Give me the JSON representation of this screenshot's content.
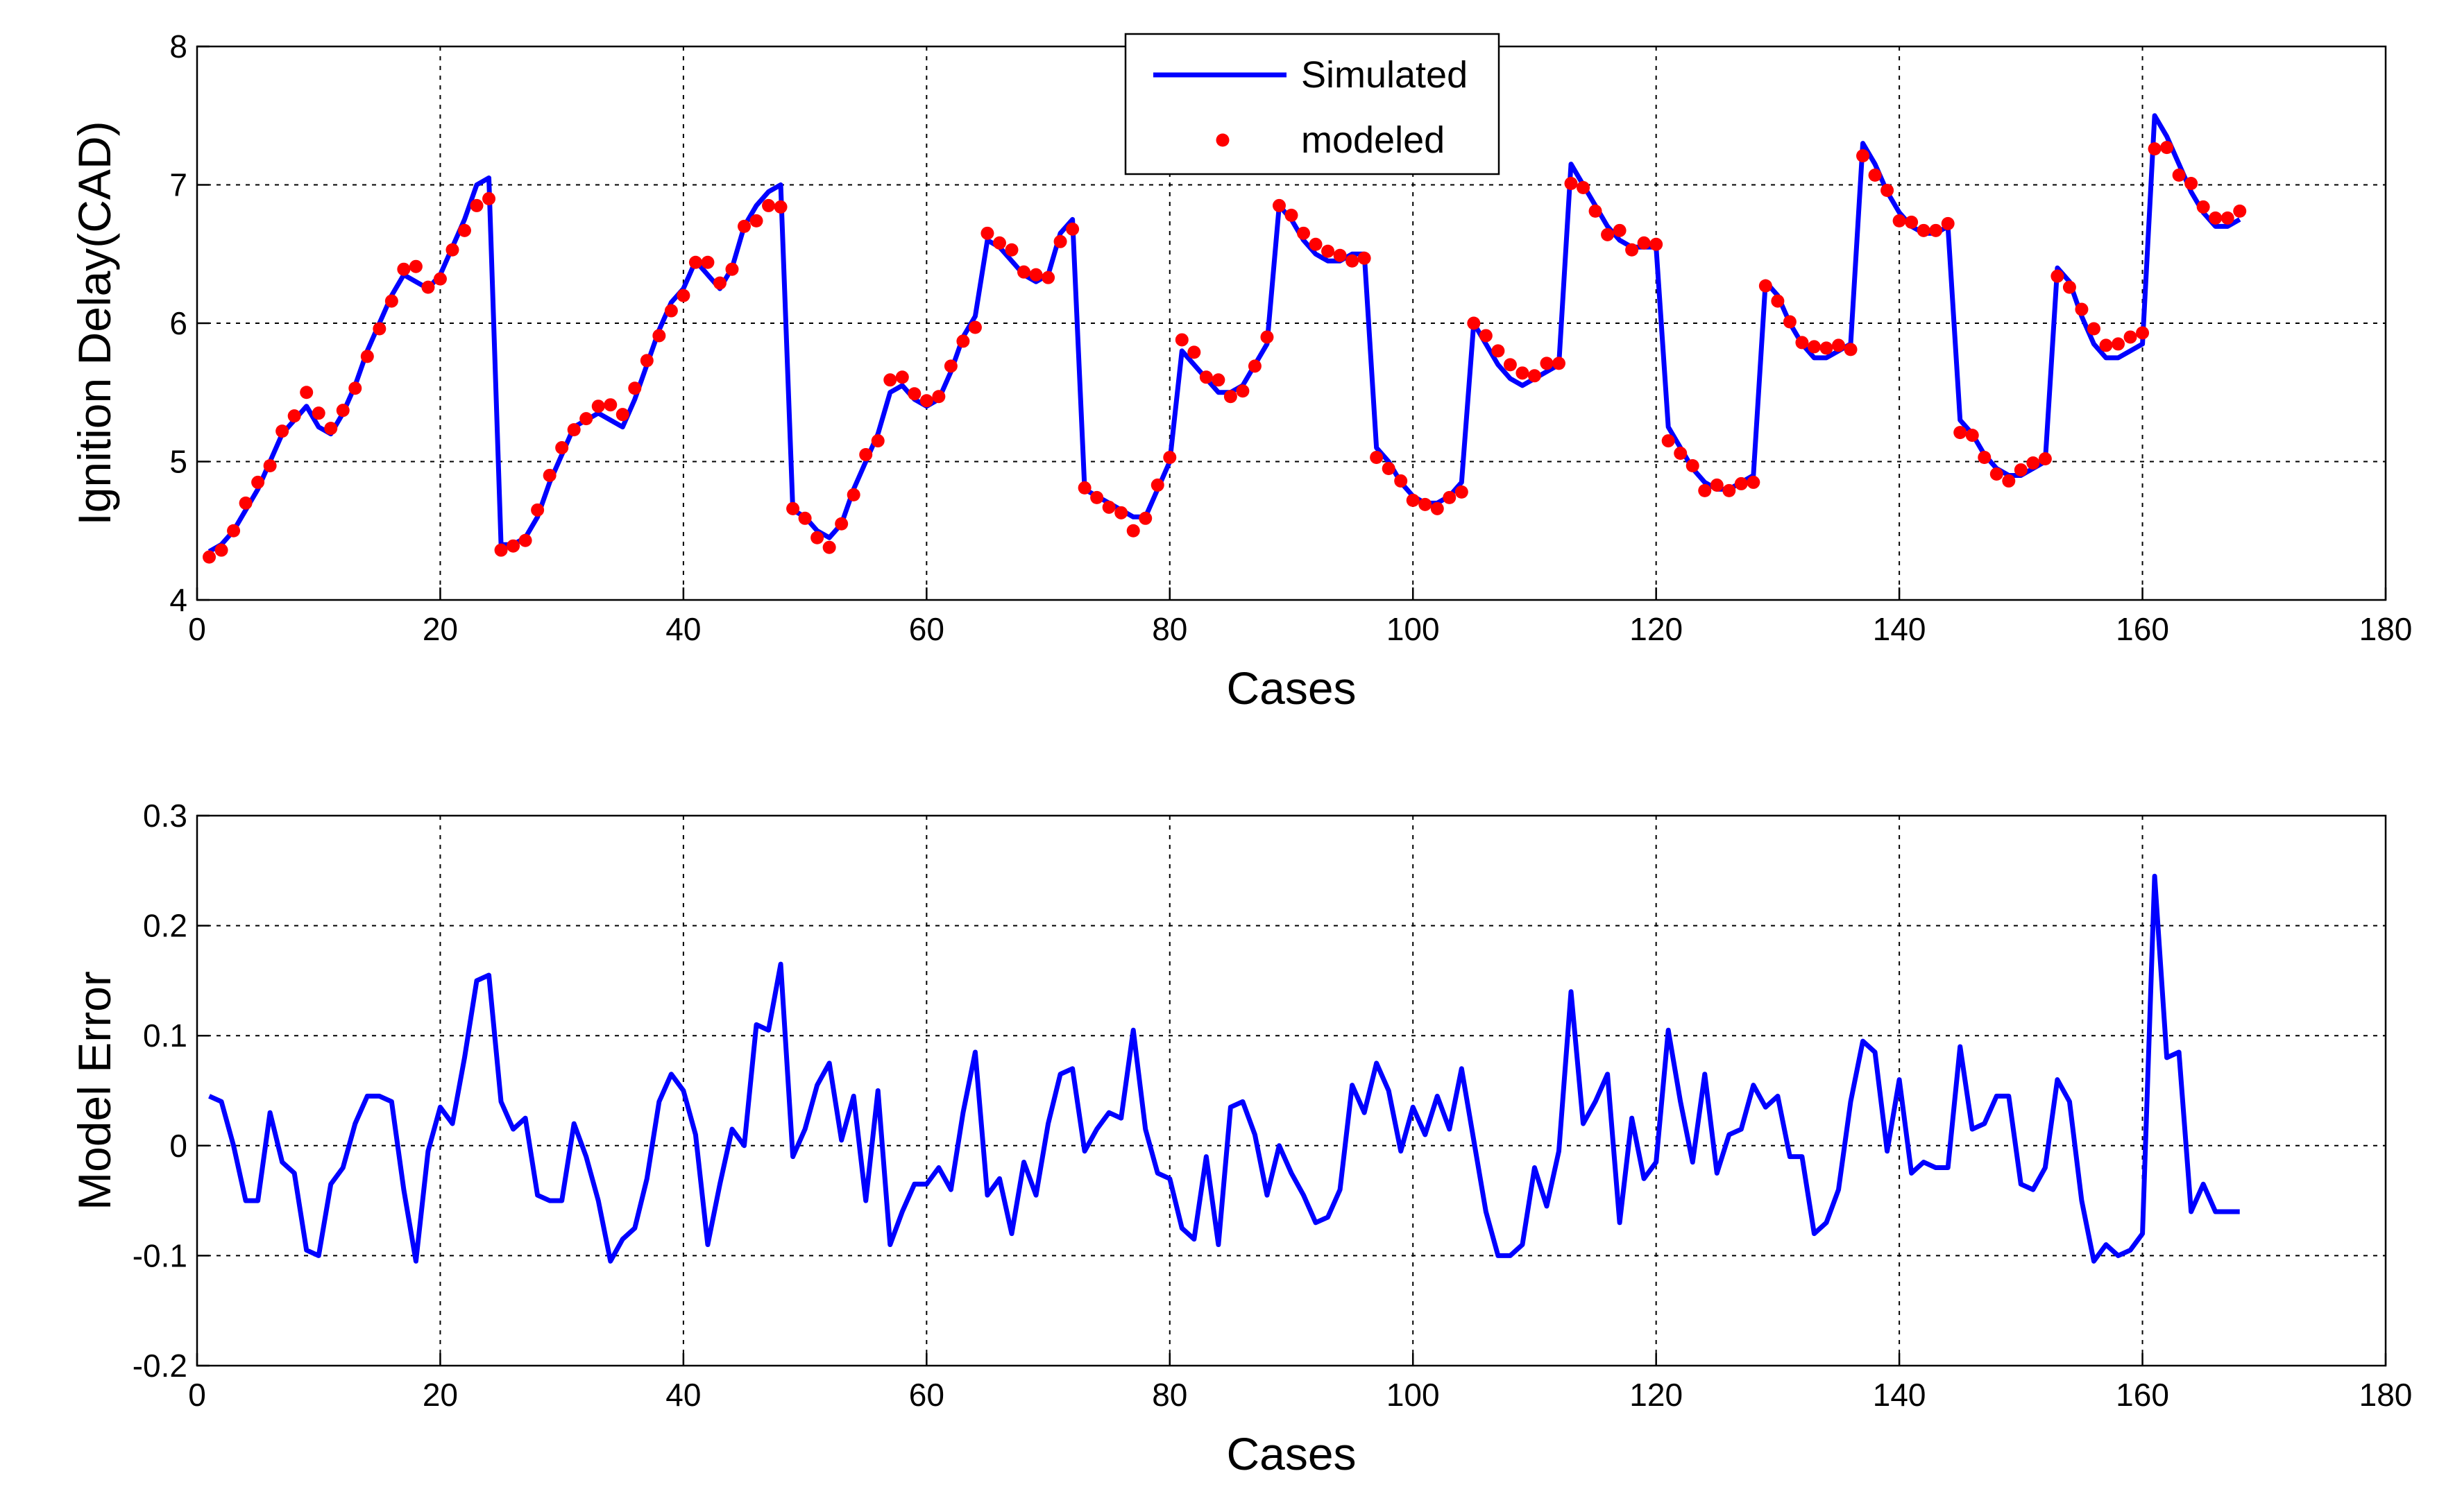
{
  "chart_data": [
    {
      "type": "line",
      "xlabel": "Cases",
      "ylabel": "Ignition Delay(CAD)",
      "x": [
        1,
        2,
        3,
        4,
        5,
        6,
        7,
        8,
        9,
        10,
        11,
        12,
        13,
        14,
        15,
        16,
        17,
        18,
        19,
        20,
        21,
        22,
        23,
        24,
        25,
        26,
        27,
        28,
        29,
        30,
        31,
        32,
        33,
        34,
        35,
        36,
        37,
        38,
        39,
        40,
        41,
        42,
        43,
        44,
        45,
        46,
        47,
        48,
        49,
        50,
        51,
        52,
        53,
        54,
        55,
        56,
        57,
        58,
        59,
        60,
        61,
        62,
        63,
        64,
        65,
        66,
        67,
        68,
        69,
        70,
        71,
        72,
        73,
        74,
        75,
        76,
        77,
        78,
        79,
        80,
        81,
        82,
        83,
        84,
        85,
        86,
        87,
        88,
        89,
        90,
        91,
        92,
        93,
        94,
        95,
        96,
        97,
        98,
        99,
        100,
        101,
        102,
        103,
        104,
        105,
        106,
        107,
        108,
        109,
        110,
        111,
        112,
        113,
        114,
        115,
        116,
        117,
        118,
        119,
        120,
        121,
        122,
        123,
        124,
        125,
        126,
        127,
        128,
        129,
        130,
        131,
        132,
        133,
        134,
        135,
        136,
        137,
        138,
        139,
        140,
        141,
        142,
        143,
        144,
        145,
        146,
        147,
        148,
        149,
        150,
        151,
        152,
        153,
        154,
        155,
        156,
        157,
        158,
        159,
        160,
        161,
        162,
        163,
        164,
        165,
        166,
        167,
        168
      ],
      "series": [
        {
          "name": "Simulated",
          "color": "#0000ff",
          "mode": "line",
          "values": [
            4.35,
            4.4,
            4.5,
            4.65,
            4.8,
            5.0,
            5.2,
            5.3,
            5.4,
            5.25,
            5.2,
            5.35,
            5.55,
            5.8,
            6.0,
            6.2,
            6.35,
            6.3,
            6.25,
            6.35,
            6.55,
            6.75,
            7.0,
            7.05,
            4.4,
            4.4,
            4.45,
            4.6,
            4.85,
            5.05,
            5.25,
            5.3,
            5.35,
            5.3,
            5.25,
            5.45,
            5.7,
            5.95,
            6.15,
            6.25,
            6.45,
            6.35,
            6.25,
            6.4,
            6.7,
            6.85,
            6.95,
            7.0,
            4.65,
            4.6,
            4.5,
            4.45,
            4.55,
            4.8,
            5.0,
            5.2,
            5.5,
            5.55,
            5.45,
            5.4,
            5.45,
            5.65,
            5.9,
            6.05,
            6.6,
            6.55,
            6.45,
            6.35,
            6.3,
            6.35,
            6.65,
            6.75,
            4.8,
            4.75,
            4.7,
            4.65,
            4.6,
            4.6,
            4.8,
            5.0,
            5.8,
            5.7,
            5.6,
            5.5,
            5.5,
            5.55,
            5.7,
            5.85,
            6.85,
            6.75,
            6.6,
            6.5,
            6.45,
            6.45,
            6.5,
            6.5,
            5.1,
            5.0,
            4.85,
            4.75,
            4.7,
            4.7,
            4.75,
            4.85,
            6.0,
            5.85,
            5.7,
            5.6,
            5.55,
            5.6,
            5.65,
            5.7,
            7.15,
            7.0,
            6.85,
            6.7,
            6.6,
            6.55,
            6.55,
            6.55,
            5.25,
            5.1,
            4.95,
            4.85,
            4.8,
            4.8,
            4.85,
            4.9,
            6.3,
            6.2,
            6.0,
            5.85,
            5.75,
            5.75,
            5.8,
            5.85,
            7.3,
            7.15,
            6.95,
            6.8,
            6.7,
            6.65,
            6.65,
            6.7,
            5.3,
            5.2,
            5.05,
            4.95,
            4.9,
            4.9,
            4.95,
            5.0,
            6.4,
            6.3,
            6.05,
            5.85,
            5.75,
            5.75,
            5.8,
            5.85,
            7.5,
            7.35,
            7.15,
            6.95,
            6.8,
            6.7,
            6.7,
            6.75
          ]
        },
        {
          "name": "modeled",
          "color": "#ff0000",
          "mode": "markers",
          "values": [
            4.31,
            4.36,
            4.5,
            4.7,
            4.85,
            4.97,
            5.22,
            5.33,
            5.5,
            5.35,
            5.24,
            5.37,
            5.53,
            5.76,
            5.96,
            6.16,
            6.39,
            6.41,
            6.26,
            6.32,
            6.53,
            6.67,
            6.85,
            6.9,
            4.36,
            4.39,
            4.43,
            4.65,
            4.9,
            5.1,
            5.23,
            5.31,
            5.4,
            5.41,
            5.34,
            5.53,
            5.73,
            5.91,
            6.09,
            6.2,
            6.44,
            6.44,
            6.29,
            6.39,
            6.7,
            6.74,
            6.85,
            6.84,
            4.66,
            4.59,
            4.45,
            4.38,
            4.55,
            4.76,
            5.05,
            5.15,
            5.59,
            5.61,
            5.49,
            5.44,
            5.47,
            5.69,
            5.87,
            5.97,
            6.65,
            6.58,
            6.53,
            6.37,
            6.35,
            6.33,
            6.59,
            6.68,
            4.81,
            4.74,
            4.67,
            4.63,
            4.5,
            4.59,
            4.83,
            5.03,
            5.88,
            5.79,
            5.61,
            5.59,
            5.47,
            5.51,
            5.69,
            5.9,
            6.85,
            6.78,
            6.65,
            6.57,
            6.52,
            6.49,
            6.45,
            6.47,
            5.03,
            4.95,
            4.86,
            4.72,
            4.69,
            4.66,
            4.74,
            4.78,
            6.0,
            5.91,
            5.8,
            5.7,
            5.64,
            5.62,
            5.71,
            5.71,
            7.01,
            6.98,
            6.81,
            6.64,
            6.67,
            6.53,
            6.58,
            6.57,
            5.15,
            5.06,
            4.97,
            4.79,
            4.83,
            4.79,
            4.84,
            4.85,
            6.27,
            6.16,
            6.01,
            5.86,
            5.83,
            5.82,
            5.84,
            5.81,
            7.21,
            7.07,
            6.96,
            6.74,
            6.73,
            6.67,
            6.67,
            6.72,
            5.21,
            5.19,
            5.03,
            4.91,
            4.86,
            4.94,
            4.99,
            5.02,
            6.34,
            6.26,
            6.1,
            5.96,
            5.84,
            5.85,
            5.9,
            5.93,
            7.26,
            7.27,
            7.07,
            7.01,
            6.84,
            6.76,
            6.76,
            6.81
          ]
        }
      ],
      "xlim": [
        0,
        180
      ],
      "xticks": [
        0,
        20,
        40,
        60,
        80,
        100,
        120,
        140,
        160,
        180
      ],
      "ylim": [
        4,
        8
      ],
      "yticks": [
        4,
        5,
        6,
        7,
        8
      ],
      "grid": true,
      "legend": "upper center"
    },
    {
      "type": "line",
      "xlabel": "Cases",
      "ylabel": "Model Error",
      "x": [
        1,
        2,
        3,
        4,
        5,
        6,
        7,
        8,
        9,
        10,
        11,
        12,
        13,
        14,
        15,
        16,
        17,
        18,
        19,
        20,
        21,
        22,
        23,
        24,
        25,
        26,
        27,
        28,
        29,
        30,
        31,
        32,
        33,
        34,
        35,
        36,
        37,
        38,
        39,
        40,
        41,
        42,
        43,
        44,
        45,
        46,
        47,
        48,
        49,
        50,
        51,
        52,
        53,
        54,
        55,
        56,
        57,
        58,
        59,
        60,
        61,
        62,
        63,
        64,
        65,
        66,
        67,
        68,
        69,
        70,
        71,
        72,
        73,
        74,
        75,
        76,
        77,
        78,
        79,
        80,
        81,
        82,
        83,
        84,
        85,
        86,
        87,
        88,
        89,
        90,
        91,
        92,
        93,
        94,
        95,
        96,
        97,
        98,
        99,
        100,
        101,
        102,
        103,
        104,
        105,
        106,
        107,
        108,
        109,
        110,
        111,
        112,
        113,
        114,
        115,
        116,
        117,
        118,
        119,
        120,
        121,
        122,
        123,
        124,
        125,
        126,
        127,
        128,
        129,
        130,
        131,
        132,
        133,
        134,
        135,
        136,
        137,
        138,
        139,
        140,
        141,
        142,
        143,
        144,
        145,
        146,
        147,
        148,
        149,
        150,
        151,
        152,
        153,
        154,
        155,
        156,
        157,
        158,
        159,
        160,
        161,
        162,
        163,
        164,
        165,
        166,
        167,
        168
      ],
      "series": [
        {
          "color": "#0000ff",
          "mode": "line",
          "values": [
            0.045,
            0.04,
            0.0,
            -0.05,
            -0.05,
            0.03,
            -0.015,
            -0.025,
            -0.095,
            -0.1,
            -0.035,
            -0.02,
            0.02,
            0.045,
            0.045,
            0.04,
            -0.04,
            -0.105,
            -0.005,
            0.035,
            0.02,
            0.08,
            0.15,
            0.155,
            0.04,
            0.015,
            0.025,
            -0.045,
            -0.05,
            -0.05,
            0.02,
            -0.01,
            -0.05,
            -0.105,
            -0.085,
            -0.075,
            -0.03,
            0.04,
            0.065,
            0.05,
            0.01,
            -0.09,
            -0.035,
            0.015,
            0.0,
            0.11,
            0.105,
            0.165,
            -0.01,
            0.015,
            0.055,
            0.075,
            0.005,
            0.045,
            -0.05,
            0.05,
            -0.09,
            -0.06,
            -0.035,
            -0.035,
            -0.02,
            -0.04,
            0.03,
            0.085,
            -0.045,
            -0.03,
            -0.08,
            -0.015,
            -0.045,
            0.02,
            0.065,
            0.07,
            -0.005,
            0.015,
            0.03,
            0.025,
            0.105,
            0.015,
            -0.025,
            -0.03,
            -0.075,
            -0.085,
            -0.01,
            -0.09,
            0.035,
            0.04,
            0.01,
            -0.045,
            0.0,
            -0.025,
            -0.045,
            -0.07,
            -0.065,
            -0.04,
            0.055,
            0.03,
            0.075,
            0.05,
            -0.005,
            0.035,
            0.01,
            0.045,
            0.015,
            0.07,
            0.005,
            -0.06,
            -0.1,
            -0.1,
            -0.09,
            -0.02,
            -0.055,
            -0.005,
            0.14,
            0.02,
            0.04,
            0.065,
            -0.07,
            0.025,
            -0.03,
            -0.015,
            0.105,
            0.04,
            -0.015,
            0.065,
            -0.025,
            0.01,
            0.015,
            0.055,
            0.035,
            0.045,
            -0.01,
            -0.01,
            -0.08,
            -0.07,
            -0.04,
            0.04,
            0.095,
            0.085,
            -0.005,
            0.06,
            -0.025,
            -0.015,
            -0.02,
            -0.02,
            0.09,
            0.015,
            0.02,
            0.045,
            0.045,
            -0.035,
            -0.04,
            -0.02,
            0.06,
            0.04,
            -0.05,
            -0.105,
            -0.09,
            -0.1,
            -0.095,
            -0.08,
            0.245,
            0.08,
            0.085,
            -0.06,
            -0.035,
            -0.06,
            -0.06,
            -0.06
          ]
        }
      ],
      "xlim": [
        0,
        180
      ],
      "xticks": [
        0,
        20,
        40,
        60,
        80,
        100,
        120,
        140,
        160,
        180
      ],
      "ylim": [
        -0.2,
        0.3
      ],
      "yticks": [
        -0.2,
        -0.1,
        0,
        0.1,
        0.2,
        0.3
      ],
      "grid": true
    }
  ]
}
